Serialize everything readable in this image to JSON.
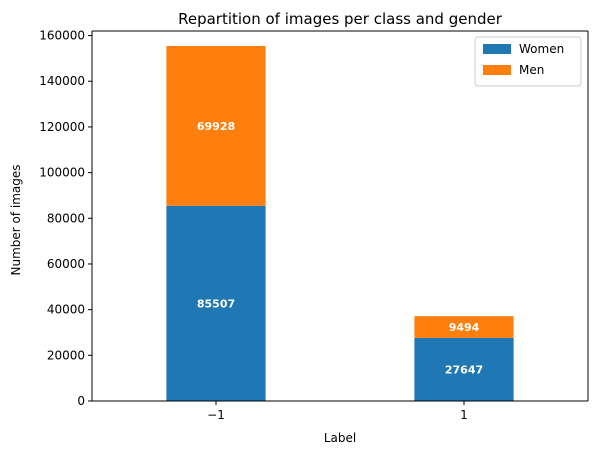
{
  "chart_data": {
    "type": "bar",
    "stacked": true,
    "title": "Repartition of images per class and gender",
    "xlabel": "Label",
    "ylabel": "Number of images",
    "categories": [
      "−1",
      "1"
    ],
    "series": [
      {
        "name": "Women",
        "values": [
          85507,
          27647
        ],
        "color": "#1f77b4"
      },
      {
        "name": "Men",
        "values": [
          69928,
          9494
        ],
        "color": "#ff7f0e"
      }
    ],
    "ylim": [
      0,
      162000
    ],
    "yticks": [
      0,
      20000,
      40000,
      60000,
      80000,
      100000,
      120000,
      140000,
      160000
    ],
    "grid": false,
    "legend_position": "top-right",
    "data_labels": true
  }
}
